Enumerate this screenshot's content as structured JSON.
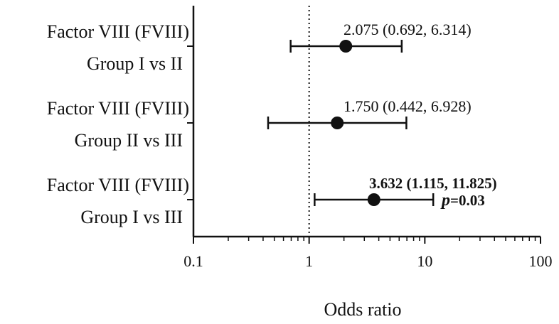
{
  "chart_data": {
    "type": "forest",
    "xscale": "log",
    "xlim": [
      0.1,
      100
    ],
    "reference_line": 1,
    "xlabel": "Odds ratio",
    "xticks": [
      0.1,
      1,
      10,
      100
    ],
    "xtick_labels": [
      "0.1",
      "1",
      "10",
      "100"
    ],
    "rows": [
      {
        "label_line1": "Factor VIII (FVIII)",
        "label_line2": "Group I vs II",
        "or": 2.075,
        "lower": 0.692,
        "upper": 6.314,
        "annotation": "2.075 (0.692, 6.314)",
        "significant": false,
        "p_label": ""
      },
      {
        "label_line1": "Factor VIII (FVIII)",
        "label_line2": "Group II vs III",
        "or": 1.75,
        "lower": 0.442,
        "upper": 6.928,
        "annotation": "1.750 (0.442, 6.928)",
        "significant": false,
        "p_label": ""
      },
      {
        "label_line1": "Factor VIII (FVIII)",
        "label_line2": "Group I vs III",
        "or": 3.632,
        "lower": 1.115,
        "upper": 11.825,
        "annotation": "3.632 (1.115, 11.825)",
        "significant": true,
        "p_label": "p",
        "p_value": "=0.03"
      }
    ]
  }
}
